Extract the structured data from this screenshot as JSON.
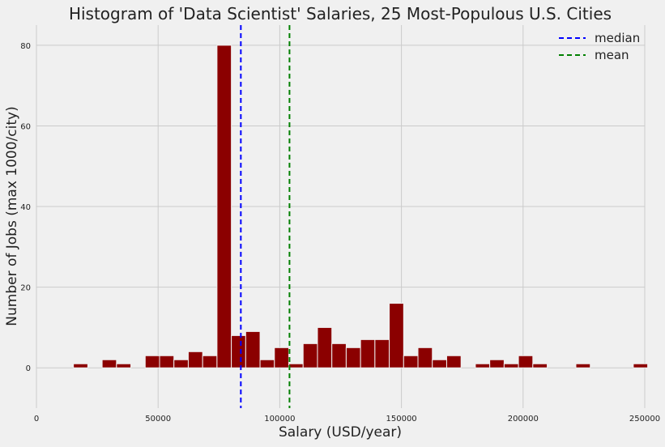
{
  "chart_data": {
    "type": "bar",
    "title": "Histogram of 'Data Scientist' Salaries, 25 Most-Populous U.S. Cities",
    "xlabel": "Salary (USD/year)",
    "ylabel": "Number of Jobs (max 1000/city)",
    "xlim": [
      0,
      250000
    ],
    "ylim": [
      -10,
      85
    ],
    "xticks": [
      0,
      50000,
      100000,
      150000,
      200000,
      250000
    ],
    "xtick_labels": [
      "0",
      "50000",
      "100000",
      "150000",
      "200000",
      "250000"
    ],
    "yticks": [
      0,
      20,
      40,
      60,
      80
    ],
    "ytick_labels": [
      "0",
      "20",
      "40",
      "60",
      "80"
    ],
    "grid": true,
    "bar_color": "#8b0000",
    "bin_width": 5900,
    "bins": [
      {
        "x": 15200,
        "count": 1
      },
      {
        "x": 27000,
        "count": 2
      },
      {
        "x": 32900,
        "count": 1
      },
      {
        "x": 44700,
        "count": 3
      },
      {
        "x": 50600,
        "count": 3
      },
      {
        "x": 56500,
        "count": 2
      },
      {
        "x": 62400,
        "count": 4
      },
      {
        "x": 68300,
        "count": 3
      },
      {
        "x": 74200,
        "count": 80
      },
      {
        "x": 80100,
        "count": 8
      },
      {
        "x": 86000,
        "count": 9
      },
      {
        "x": 91900,
        "count": 2
      },
      {
        "x": 97800,
        "count": 5
      },
      {
        "x": 103700,
        "count": 1
      },
      {
        "x": 109600,
        "count": 6
      },
      {
        "x": 115500,
        "count": 10
      },
      {
        "x": 121400,
        "count": 6
      },
      {
        "x": 127300,
        "count": 5
      },
      {
        "x": 133200,
        "count": 7
      },
      {
        "x": 139100,
        "count": 7
      },
      {
        "x": 145000,
        "count": 16
      },
      {
        "x": 150900,
        "count": 3
      },
      {
        "x": 156800,
        "count": 5
      },
      {
        "x": 162700,
        "count": 2
      },
      {
        "x": 168600,
        "count": 3
      },
      {
        "x": 180400,
        "count": 1
      },
      {
        "x": 186300,
        "count": 2
      },
      {
        "x": 192200,
        "count": 1
      },
      {
        "x": 198100,
        "count": 3
      },
      {
        "x": 204000,
        "count": 1
      },
      {
        "x": 221700,
        "count": 1
      },
      {
        "x": 245300,
        "count": 1
      }
    ],
    "reference_lines": [
      {
        "name": "median",
        "value": 84000,
        "color": "#0000ff",
        "style": "dashed"
      },
      {
        "name": "mean",
        "value": 104000,
        "color": "#008000",
        "style": "dashed"
      }
    ],
    "legend_position": "top-right"
  }
}
